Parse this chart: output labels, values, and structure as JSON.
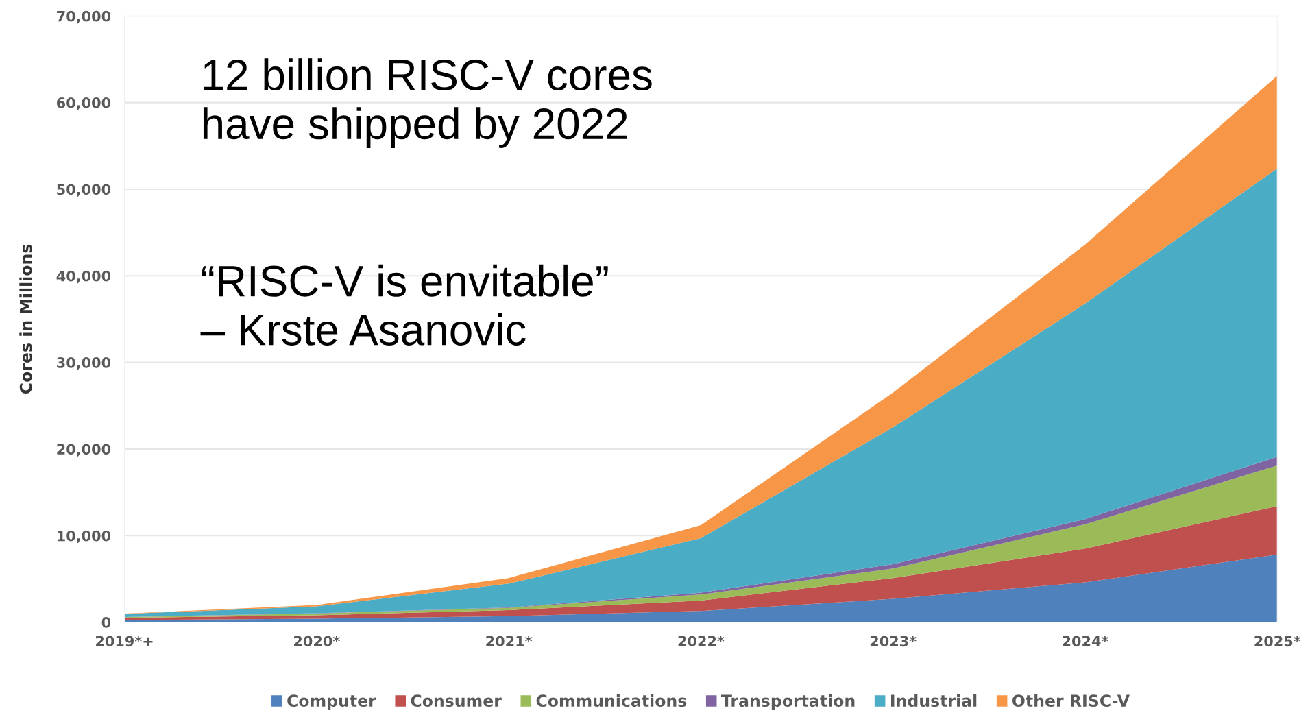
{
  "chart_data": {
    "type": "area",
    "stacked": true,
    "categories": [
      "2019*+",
      "2020*",
      "2021*",
      "2022*",
      "2023*",
      "2024*",
      "2025*"
    ],
    "series": [
      {
        "name": "Computer",
        "color": "#4f81bd",
        "values": [
          250,
          400,
          700,
          1300,
          2700,
          4600,
          7800
        ]
      },
      {
        "name": "Consumer",
        "color": "#c0504d",
        "values": [
          250,
          400,
          700,
          1200,
          2400,
          3900,
          5600
        ]
      },
      {
        "name": "Communications",
        "color": "#9bbb59",
        "values": [
          80,
          200,
          250,
          700,
          1100,
          2800,
          4700
        ]
      },
      {
        "name": "Transportation",
        "color": "#8064a2",
        "values": [
          20,
          30,
          50,
          200,
          500,
          600,
          1000
        ]
      },
      {
        "name": "Industrial",
        "color": "#4bacc6",
        "values": [
          350,
          800,
          2750,
          6300,
          15800,
          24900,
          33300
        ]
      },
      {
        "name": "Other RISC-V",
        "color": "#f79646",
        "values": [
          50,
          150,
          650,
          1500,
          4000,
          6800,
          10700
        ]
      }
    ],
    "ylabel": "Cores in Millions",
    "ylim": [
      0,
      70000
    ],
    "yticks": [
      0,
      {
        "value": 10000,
        "label": "10,000"
      },
      {
        "value": 20000,
        "label": "20,000"
      },
      {
        "value": 30000,
        "label": "30,000"
      },
      {
        "value": 40000,
        "label": "40,000"
      },
      {
        "value": 50000,
        "label": "50,000"
      },
      {
        "value": 60000,
        "label": "60,000"
      },
      {
        "value": 70000,
        "label": "70,000"
      }
    ],
    "grid": "y",
    "legend": "bottom",
    "annotations": [
      "12 billion RISC-V cores\nhave shipped by 2022",
      "“RISC-V is envitable”\n– Krste Asanovic"
    ]
  }
}
